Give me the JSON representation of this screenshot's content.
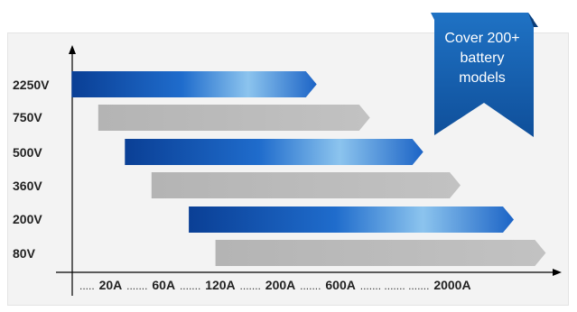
{
  "diagram": {
    "voltage_labels": [
      "2250V",
      "750V",
      "500V",
      "360V",
      "200V",
      "80V"
    ],
    "bars": [
      {
        "label": "2250V",
        "style": "blue",
        "start": 0.07,
        "end": 0.53
      },
      {
        "label": "750V",
        "style": "gray",
        "start": 0.12,
        "end": 0.63
      },
      {
        "label": "500V",
        "style": "blue",
        "start": 0.17,
        "end": 0.73
      },
      {
        "label": "360V",
        "style": "gray",
        "start": 0.22,
        "end": 0.8
      },
      {
        "label": "200V",
        "style": "blue",
        "start": 0.29,
        "end": 0.9
      },
      {
        "label": "80V",
        "style": "gray",
        "start": 0.34,
        "end": 0.96
      }
    ],
    "x_axis_items": [
      {
        "text": ".....",
        "kind": "dots"
      },
      {
        "text": "20A",
        "kind": "val"
      },
      {
        "text": ".......",
        "kind": "dots"
      },
      {
        "text": "60A",
        "kind": "val"
      },
      {
        "text": ".......",
        "kind": "dots"
      },
      {
        "text": "120A",
        "kind": "val"
      },
      {
        "text": ".......",
        "kind": "dots"
      },
      {
        "text": "200A",
        "kind": "val"
      },
      {
        "text": ".......",
        "kind": "dots"
      },
      {
        "text": "600A",
        "kind": "val"
      },
      {
        "text": ".......    .......   .......",
        "kind": "dots"
      },
      {
        "text": "2000A",
        "kind": "val"
      }
    ],
    "ribbon_lines": [
      "Cover 200+",
      "battery",
      "models"
    ],
    "colors": {
      "blue_dark": "#0a3f95",
      "blue_light": "#8cc4ee",
      "gray": "#b9b9b9",
      "ribbon": "#1a65b5",
      "axis": "#000000"
    }
  }
}
